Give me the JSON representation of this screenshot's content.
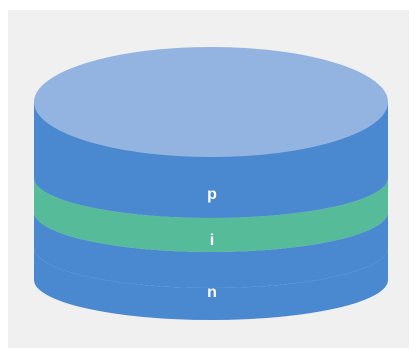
{
  "diagram": {
    "layers": [
      {
        "id": "p",
        "label": "p",
        "color": "#4a89d0"
      },
      {
        "id": "i",
        "label": "i",
        "color": "#55bb99"
      },
      {
        "id": "n",
        "label": "n",
        "color": "#4a89d0"
      }
    ],
    "top_color": "#93b4e0",
    "background_color": "#f0f0f0"
  }
}
